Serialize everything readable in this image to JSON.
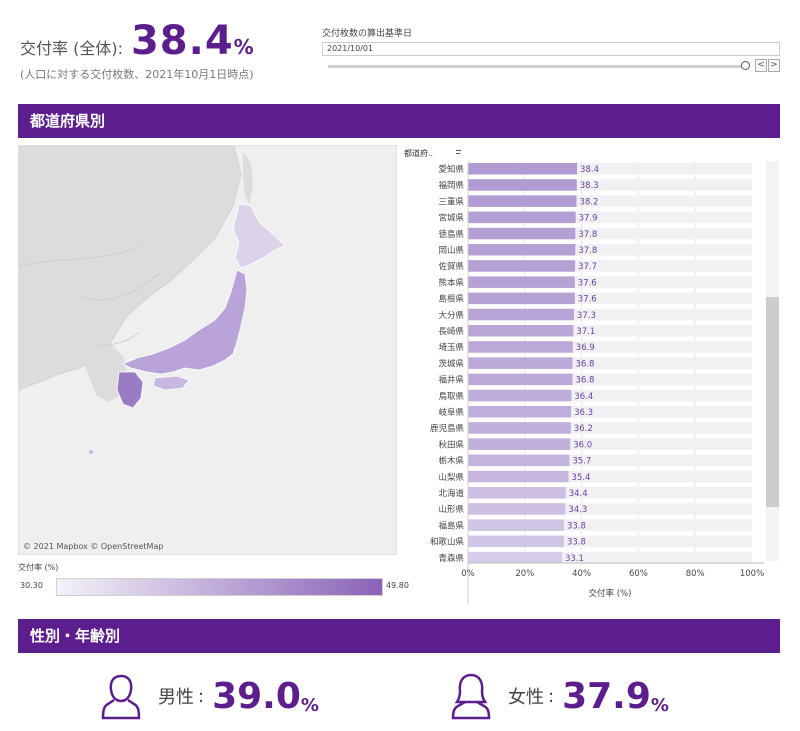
{
  "summary": {
    "label": "交付率 (全体):",
    "value": "38.4",
    "unit": "%",
    "note": "(人口に対する交付枚数、2021年10月1日時点)"
  },
  "date_filter": {
    "title": "交付枚数の算出基準日",
    "value": "2021/10/01",
    "prev_symbol": "<",
    "next_symbol": ">"
  },
  "sections": {
    "prefecture": "都道府県別",
    "gender_age": "性別・年齢別"
  },
  "map": {
    "credit": "© 2021 Mapbox © OpenStreetMap",
    "land_color": "#dcdcdc",
    "sea_color": "#efefef"
  },
  "legend": {
    "title": "交付率 (%)",
    "min": "30.30",
    "max": "49.80",
    "color_low": "#f4f2f8",
    "color_high": "#8a63b8"
  },
  "chart_data": {
    "type": "bar",
    "orientation": "horizontal",
    "column_header": "都道府..",
    "xlabel": "交付率 (%)",
    "ticks": [
      "0%",
      "20%",
      "40%",
      "60%",
      "80%",
      "100%"
    ],
    "xlim": [
      0,
      100
    ],
    "grid": true,
    "categories": [
      "愛知県",
      "福岡県",
      "三重県",
      "宮城県",
      "徳島県",
      "岡山県",
      "佐賀県",
      "熊本県",
      "島根県",
      "大分県",
      "長崎県",
      "埼玉県",
      "茨城県",
      "福井県",
      "鳥取県",
      "岐阜県",
      "鹿児島県",
      "秋田県",
      "栃木県",
      "山梨県",
      "北海道",
      "山形県",
      "福島県",
      "和歌山県",
      "青森県"
    ],
    "values": [
      38.4,
      38.3,
      38.2,
      37.9,
      37.8,
      37.8,
      37.7,
      37.6,
      37.6,
      37.3,
      37.1,
      36.9,
      36.8,
      36.8,
      36.4,
      36.3,
      36.2,
      36.0,
      35.7,
      35.4,
      34.4,
      34.3,
      33.8,
      33.8,
      33.1
    ]
  },
  "gender": {
    "male": {
      "label": "男性",
      "value": "39.0",
      "unit": "%"
    },
    "female": {
      "label": "女性",
      "value": "37.9",
      "unit": "%"
    },
    "colon": ":"
  },
  "colors": {
    "accent": "#5b1e8c",
    "bar_fill_high": "#b09ad2",
    "bar_fill_low": "#d6cbe8",
    "bar_track": "#f1f0f3"
  }
}
